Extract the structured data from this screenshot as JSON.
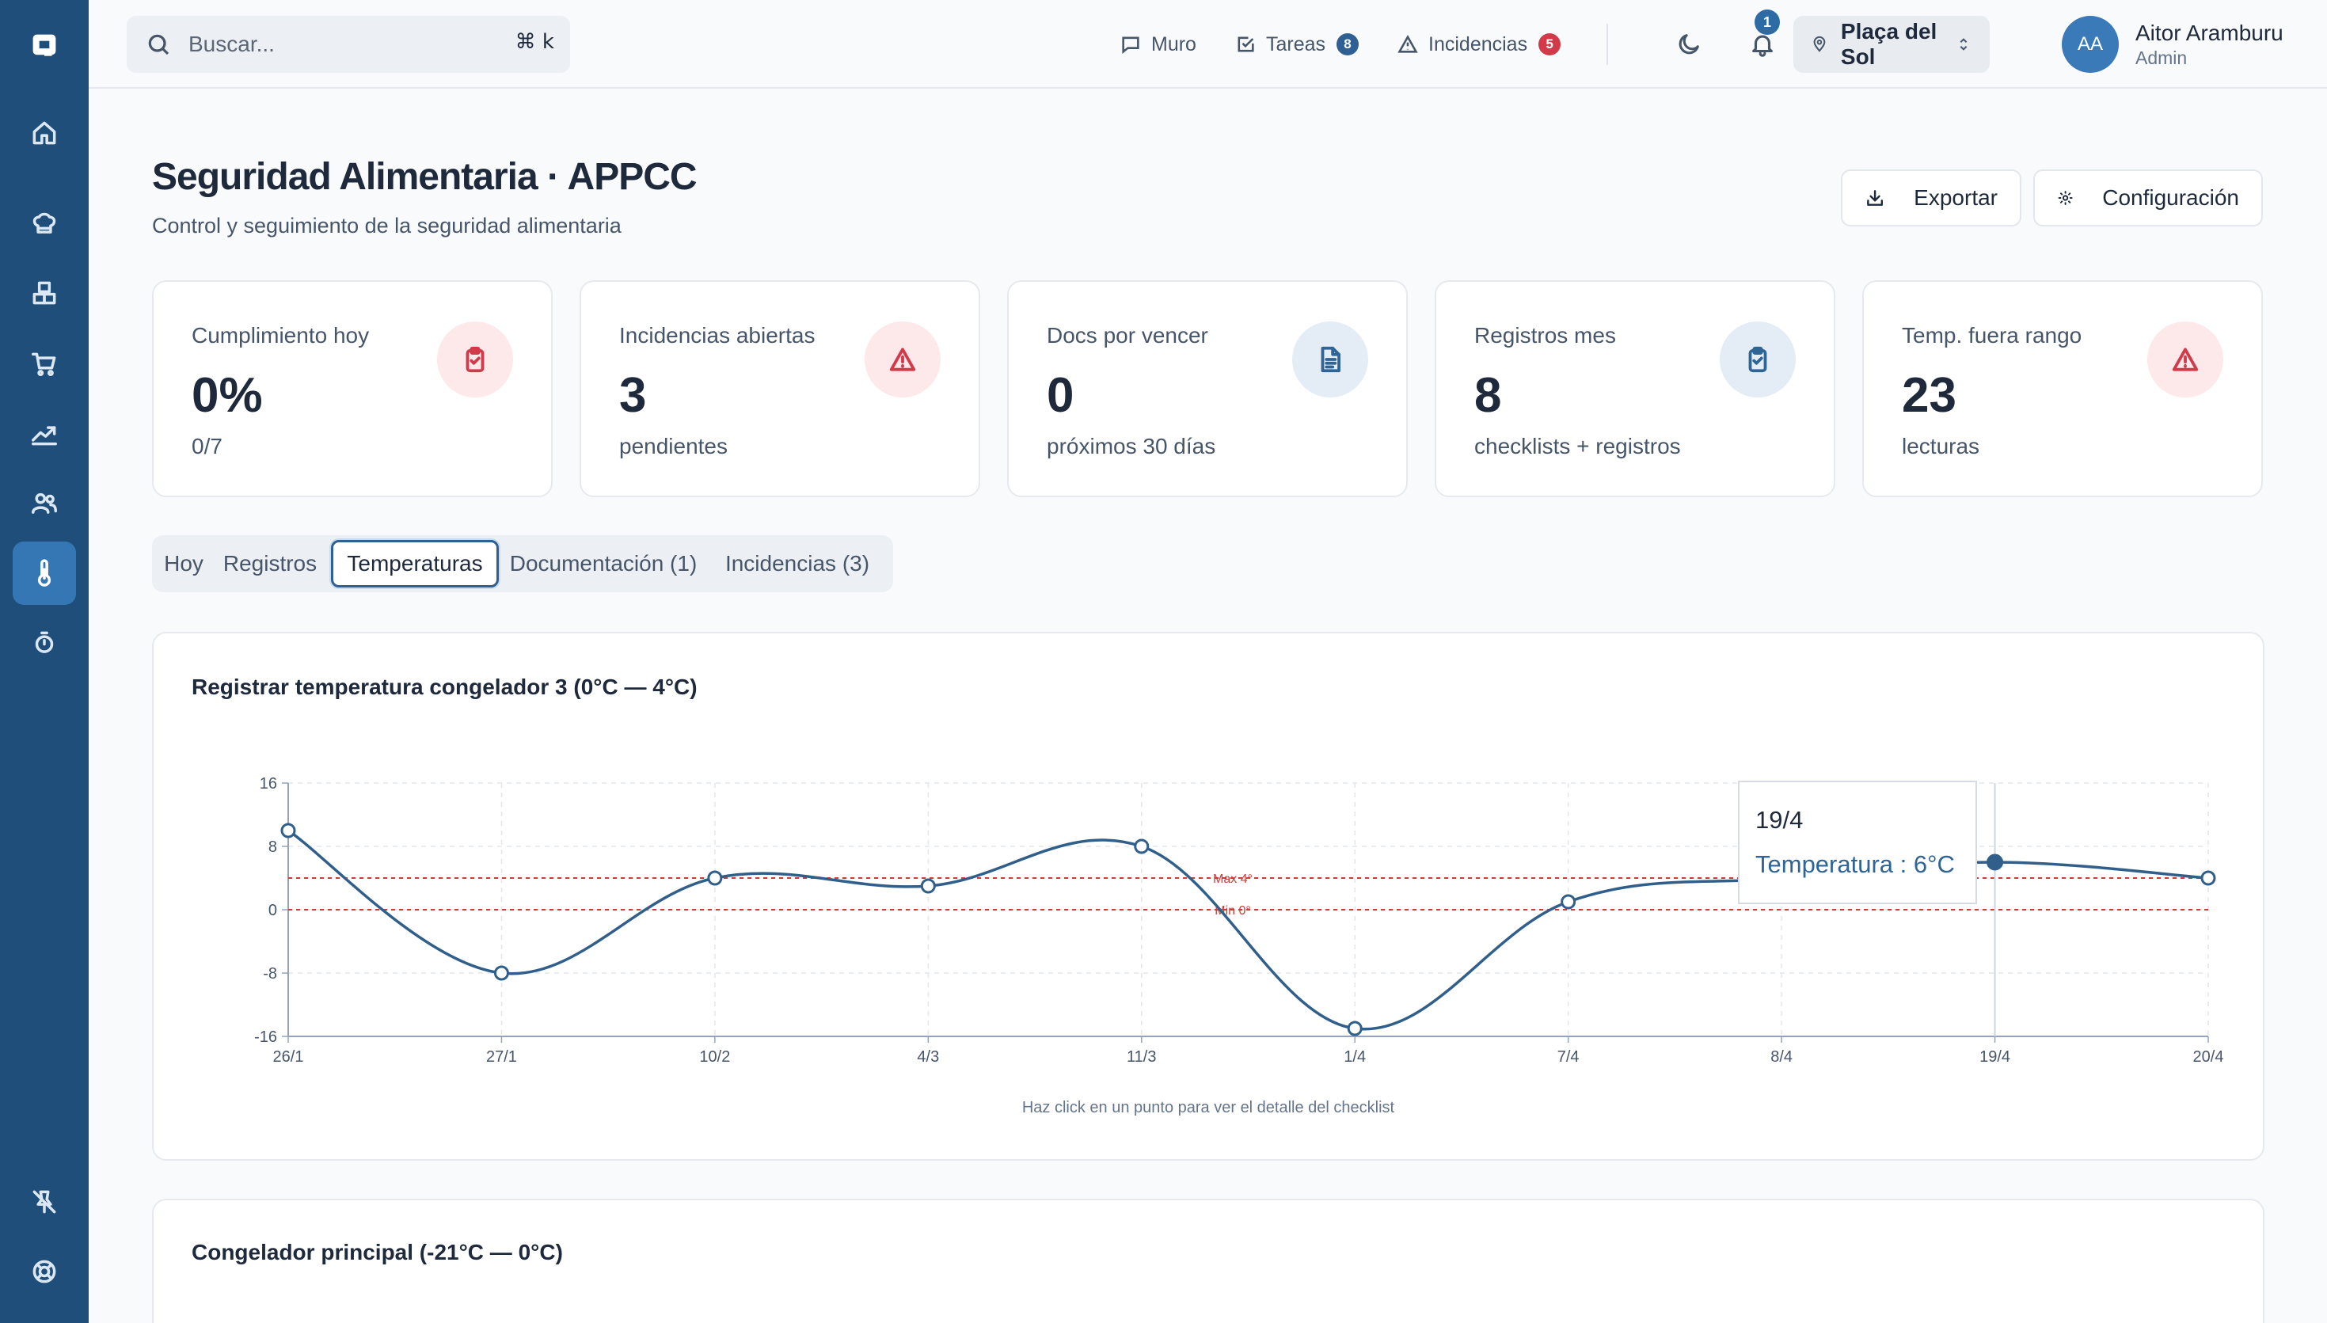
{
  "search": {
    "placeholder": "Buscar...",
    "shortcut": "⌘ k"
  },
  "topnav": {
    "muro": "Muro",
    "tareas": "Tareas",
    "tareas_count": "8",
    "incidencias": "Incidencias",
    "incidencias_count": "5",
    "notifications_count": "1"
  },
  "location": {
    "name": "Plaça del Sol"
  },
  "user": {
    "initials": "AA",
    "name": "Aitor Aramburu",
    "role": "Admin"
  },
  "page": {
    "title": "Seguridad Alimentaria · APPCC",
    "subtitle": "Control y seguimiento de la seguridad alimentaria",
    "export_label": "Exportar",
    "config_label": "Configuración"
  },
  "stats": [
    {
      "label": "Cumplimiento hoy",
      "value": "0%",
      "sub": "0/7",
      "icon": "clipboard-check-icon"
    },
    {
      "label": "Incidencias abiertas",
      "value": "3",
      "sub": "pendientes",
      "icon": "alert-triangle-icon"
    },
    {
      "label": "Docs por vencer",
      "value": "0",
      "sub": "próximos 30 días",
      "icon": "document-icon"
    },
    {
      "label": "Registros mes",
      "value": "8",
      "sub": "checklists + registros",
      "icon": "clipboard-check-icon"
    },
    {
      "label": "Temp. fuera rango",
      "value": "23",
      "sub": "lecturas",
      "icon": "alert-triangle-icon"
    }
  ],
  "colors": {
    "accent": "#1f4e7a",
    "line": "#2f5f8a",
    "danger_bg": "#fde8ea",
    "danger": "#d23a4a",
    "info_bg": "#e4edf6",
    "info": "#2f6496",
    "limit": "#d23a3a"
  },
  "tabs": [
    {
      "label": "Hoy"
    },
    {
      "label": "Registros"
    },
    {
      "label": "Temperaturas",
      "active": true
    },
    {
      "label": "Documentación (1)"
    },
    {
      "label": "Incidencias (3)"
    }
  ],
  "chart_card": {
    "title": "Registrar temperatura congelador 3 (0°C — 4°C)",
    "note": "Haz click en un punto para ver el detalle del checklist"
  },
  "chart_data": {
    "type": "line",
    "categories": [
      "26/1",
      "27/1",
      "10/2",
      "4/3",
      "11/3",
      "1/4",
      "7/4",
      "8/4",
      "19/4",
      "20/4"
    ],
    "series": [
      {
        "name": "Temperatura",
        "values": [
          10,
          -8,
          4,
          3,
          8,
          -15,
          1,
          4,
          6,
          4
        ]
      }
    ],
    "ylim": [
      -16,
      16
    ],
    "yticks": [
      16,
      8,
      0,
      -8,
      -16
    ],
    "grid": true,
    "reference_lines": [
      {
        "label": "Max 4°",
        "value": 4
      },
      {
        "label": "Min 0°",
        "value": 0
      }
    ],
    "tooltip": {
      "category": "19/4",
      "text": "Temperatura : 6°C"
    }
  },
  "second_card": {
    "title": "Congelador principal (-21°C — 0°C)"
  }
}
